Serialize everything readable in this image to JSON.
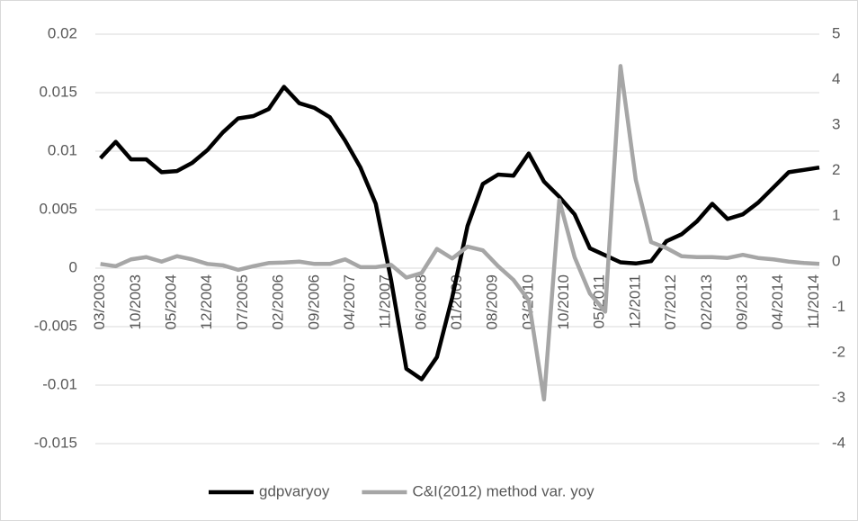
{
  "chart_data": {
    "type": "line",
    "x": [
      "03/2003",
      "06/2003",
      "09/2003",
      "12/2003",
      "03/2004",
      "06/2004",
      "09/2004",
      "12/2004",
      "03/2005",
      "06/2005",
      "09/2005",
      "12/2005",
      "03/2006",
      "06/2006",
      "09/2006",
      "12/2006",
      "03/2007",
      "06/2007",
      "09/2007",
      "12/2007",
      "03/2008",
      "06/2008",
      "09/2008",
      "12/2008",
      "03/2009",
      "06/2009",
      "09/2009",
      "12/2009",
      "03/2010",
      "06/2010",
      "09/2010",
      "12/2010",
      "03/2011",
      "06/2011",
      "09/2011",
      "12/2011",
      "03/2012",
      "06/2012",
      "09/2012",
      "12/2012",
      "03/2013",
      "06/2013",
      "09/2013",
      "12/2013",
      "03/2014",
      "06/2014",
      "09/2014",
      "12/2014"
    ],
    "xlim": [
      "02/2003",
      "12/2014"
    ],
    "xticks": [
      "03/2003",
      "10/2003",
      "05/2004",
      "12/2004",
      "07/2005",
      "02/2006",
      "09/2006",
      "04/2007",
      "11/2007",
      "06/2008",
      "01/2009",
      "08/2009",
      "03/2010",
      "10/2010",
      "05/2011",
      "12/2011",
      "07/2012",
      "02/2013",
      "09/2013",
      "04/2014",
      "11/2014"
    ],
    "ylim": [
      -0.015,
      0.02
    ],
    "yticks": [
      0.02,
      0.015,
      0.01,
      0.005,
      0,
      -0.005,
      -0.01,
      -0.015
    ],
    "y2lim": [
      -4,
      5
    ],
    "y2ticks": [
      5,
      4,
      3,
      2,
      1,
      0,
      -1,
      -2,
      -3,
      -4
    ],
    "grid": true,
    "legend": "bottom",
    "series": [
      {
        "name": "gdpvaryoy",
        "color": "#000000",
        "axis": "y",
        "values": [
          0.0094,
          0.0108,
          0.0093,
          0.0093,
          0.0082,
          0.0083,
          0.009,
          0.0101,
          0.0116,
          0.0128,
          0.013,
          0.0136,
          0.0155,
          0.0141,
          0.0137,
          0.0129,
          0.0109,
          0.0086,
          0.0055,
          -0.001,
          -0.0086,
          -0.0095,
          -0.0076,
          -0.0025,
          0.0036,
          0.0072,
          0.008,
          0.0079,
          0.0098,
          0.0074,
          0.0061,
          0.0046,
          0.0017,
          0.0011,
          0.0005,
          0.0004,
          0.0006,
          0.0023,
          0.0029,
          0.004,
          0.0055,
          0.0042,
          0.0046,
          0.0056,
          0.0069,
          0.0082,
          0.0084,
          0.0086
        ]
      },
      {
        "name": "C&I(2012) method var. yoy",
        "color": "#a6a6a6",
        "axis": "y2",
        "values": [
          -0.05,
          -0.1,
          0.05,
          0.1,
          0,
          0.12,
          0.05,
          -0.05,
          -0.08,
          -0.18,
          -0.1,
          -0.03,
          -0.02,
          0,
          -0.05,
          -0.05,
          0.05,
          -0.12,
          -0.12,
          -0.07,
          -0.35,
          -0.25,
          0.28,
          0.07,
          0.33,
          0.25,
          -0.1,
          -0.4,
          -0.85,
          -3.03,
          1.35,
          0.1,
          -0.7,
          -1.1,
          4.3,
          1.8,
          0.43,
          0.3,
          0.12,
          0.1,
          0.1,
          0.08,
          0.15,
          0.08,
          0.05,
          0,
          -0.03,
          -0.05
        ]
      }
    ]
  }
}
